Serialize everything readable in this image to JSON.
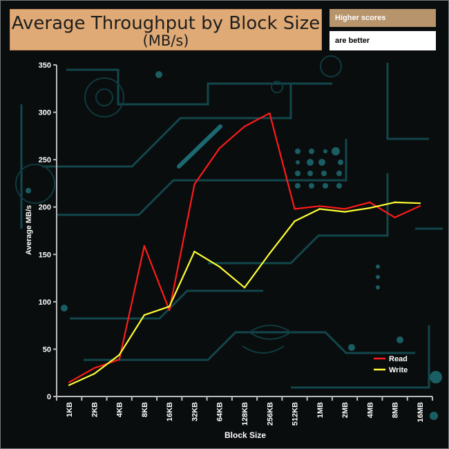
{
  "header": {
    "title_line1": "Average Throughput by Block Size",
    "title_line2": "(MB/s)",
    "note_line1": "Higher scores",
    "note_line2": "are better"
  },
  "chart_data": {
    "type": "line",
    "categories": [
      "1KB",
      "2KB",
      "4KB",
      "8KB",
      "16KB",
      "32KB",
      "64KB",
      "128KB",
      "256KB",
      "512KB",
      "1MB",
      "2MB",
      "4MB",
      "8MB",
      "16MB"
    ],
    "series": [
      {
        "name": "Read",
        "color": "#ff1a1a",
        "values": [
          15,
          30,
          39,
          159,
          91,
          224,
          262,
          285,
          299,
          198,
          201,
          198,
          205,
          189,
          201
        ]
      },
      {
        "name": "Write",
        "color": "#ffff33",
        "values": [
          12,
          24,
          44,
          86,
          95,
          153,
          137,
          115,
          151,
          185,
          198,
          195,
          199,
          205,
          204
        ]
      }
    ],
    "xlabel": "Block Size",
    "ylabel": "Average MB/s",
    "ylim": [
      0,
      350
    ],
    "yticks": [
      0,
      50,
      100,
      150,
      200,
      250,
      300,
      350
    ],
    "legend_position": "bottom-right",
    "grid": false
  }
}
